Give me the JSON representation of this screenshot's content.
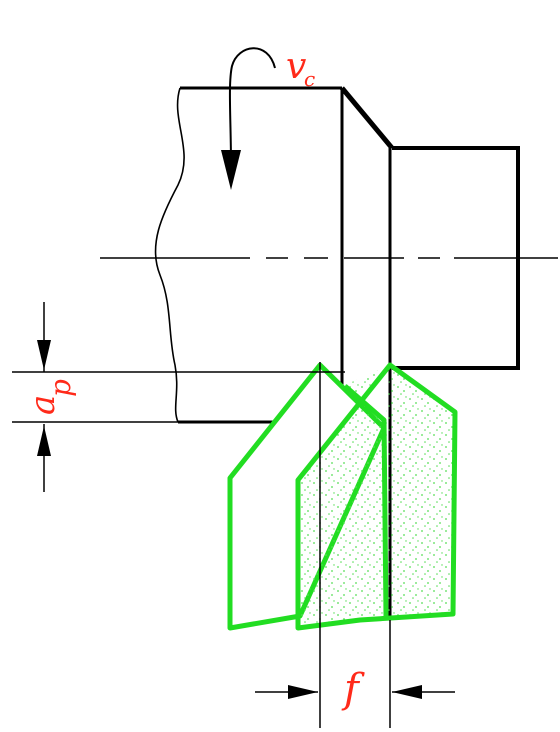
{
  "labels": {
    "cutting_speed": "v",
    "cutting_speed_sub": "c",
    "depth_of_cut": "a",
    "depth_of_cut_sub": "p",
    "feed": "f"
  },
  "colors": {
    "outline": "#000000",
    "label": "#ff2a1a",
    "tool": "#22dd22",
    "chip_dots": "#55dd55"
  }
}
